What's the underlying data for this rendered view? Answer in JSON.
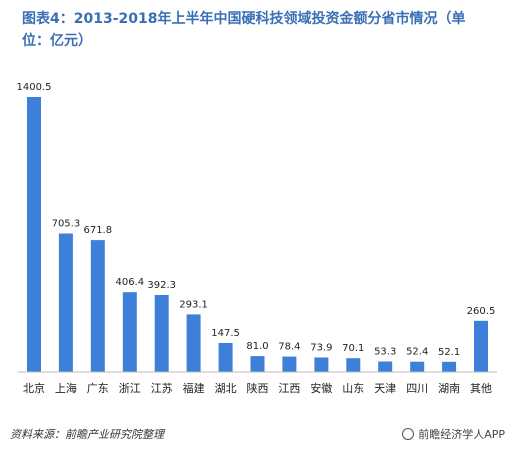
{
  "header": {
    "title": "图表4：2013-2018年上半年中国硬科技领域投资金额分省市情况（单位：亿元）"
  },
  "footer": {
    "source": "资料来源：前瞻产业研究院整理",
    "watermark": "前瞻经济学人APP"
  },
  "colors": {
    "bar": "#3d7fd9",
    "title": "#3a6fb5",
    "axis": "#bbbbbb"
  },
  "chart_data": {
    "type": "bar",
    "title": "图表4：2013-2018年上半年中国硬科技领域投资金额分省市情况（单位：亿元）",
    "xlabel": "",
    "ylabel": "",
    "ylim": [
      0,
      1400.5
    ],
    "grid": false,
    "categories": [
      "北京",
      "上海",
      "广东",
      "浙江",
      "江苏",
      "福建",
      "湖北",
      "陕西",
      "江西",
      "安徽",
      "山东",
      "天津",
      "四川",
      "湖南",
      "其他"
    ],
    "values": [
      1400.5,
      705.3,
      671.8,
      406.4,
      392.3,
      293.1,
      147.5,
      81.0,
      78.4,
      73.9,
      70.1,
      53.3,
      52.4,
      52.1,
      260.5
    ],
    "value_labels": [
      "1400.5",
      "705.3",
      "671.8",
      "406.4",
      "392.3",
      "293.1",
      "147.5",
      "81.0",
      "78.4",
      "73.9",
      "70.1",
      "53.3",
      "52.4",
      "52.1",
      "260.5"
    ]
  }
}
